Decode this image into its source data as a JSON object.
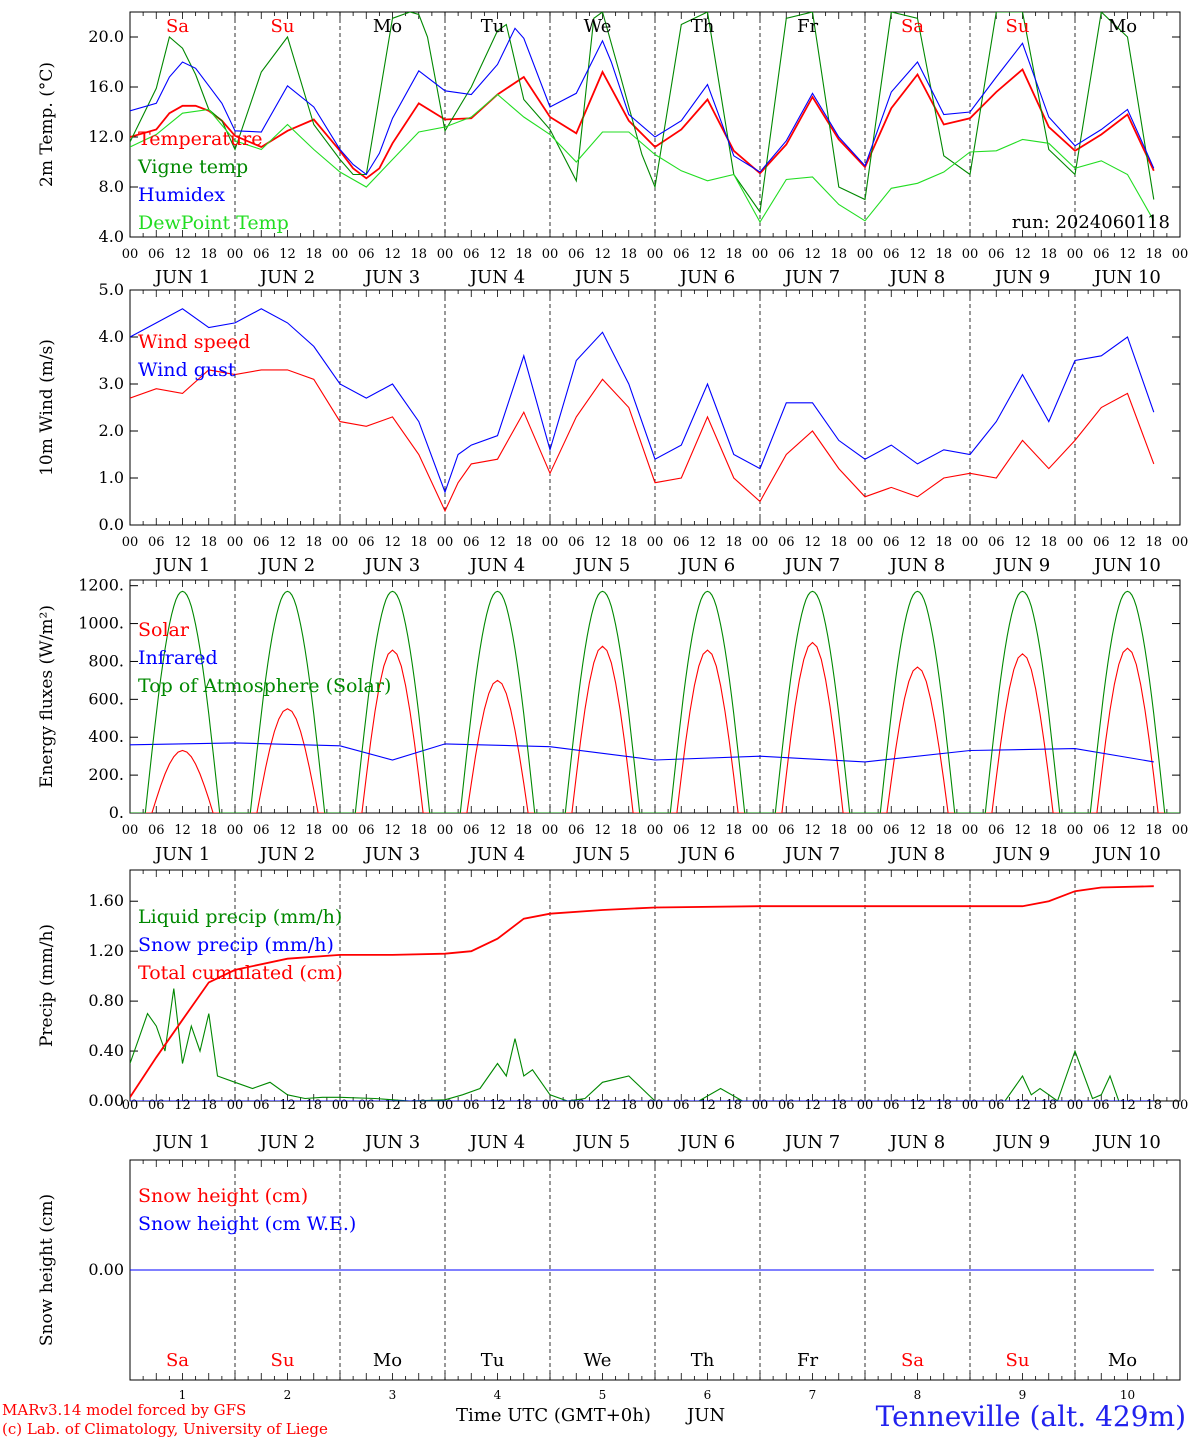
{
  "colors": {
    "temperature": "#ff0000",
    "vigne": "#008800",
    "humidex": "#0000ff",
    "dewpoint": "#22dd22",
    "wind_speed": "#ff0000",
    "wind_gust": "#0000ff",
    "solar": "#ff0000",
    "infrared": "#0000ff",
    "toa": "#008800",
    "liquid": "#008800",
    "snow_precip": "#0000ff",
    "cumulated": "#ff0000",
    "snow_height": "#ff0000",
    "snow_we": "#0000ff",
    "weekend": "#ff0000",
    "weekday": "#000000",
    "station": "#2222ee"
  },
  "time_axis": {
    "hour_labels": [
      "00",
      "06",
      "12",
      "18"
    ],
    "final_hour_label": "00",
    "date_labels": [
      "JUN  1",
      "JUN  2",
      "JUN  3",
      "JUN  4",
      "JUN  5",
      "JUN  6",
      "JUN  7",
      "JUN  8",
      "JUN  9",
      "JUN 10"
    ],
    "day_names": [
      "Sa",
      "Su",
      "Mo",
      "Tu",
      "We",
      "Th",
      "Fr",
      "Sa",
      "Su",
      "Mo"
    ],
    "weekend": [
      true,
      true,
      false,
      false,
      false,
      false,
      false,
      true,
      true,
      false
    ],
    "day_numbers": [
      "1",
      "2",
      "3",
      "4",
      "5",
      "6",
      "7",
      "8",
      "9",
      "10"
    ],
    "xlabel": "Time UTC (GMT+0h)",
    "month": "JUN"
  },
  "run_label": "run: 2024060118",
  "footer": {
    "model": "MARv3.14 model forced by GFS",
    "lab": "(c) Lab. of Climatology, University of Liege",
    "station": "Tenneville (alt. 429m)"
  },
  "chart_data": [
    {
      "type": "line",
      "ylabel": "2m Temp. (°C)",
      "ylim": [
        4.0,
        22.0
      ],
      "yticks": [
        "4.0",
        "8.0",
        "12.0",
        "16.0",
        "20.0"
      ],
      "ytick_values": [
        4,
        8,
        12,
        16,
        20
      ],
      "x_unit": "hours since JUN 1 00 UTC",
      "series": [
        {
          "name": "Temperature",
          "color_key": "temperature",
          "x": [
            0,
            6,
            9,
            12,
            15,
            18,
            21,
            24,
            30,
            36,
            42,
            48,
            51,
            54,
            57,
            60,
            66,
            72,
            78,
            84,
            90,
            96,
            102,
            108,
            114,
            120,
            126,
            132,
            138,
            144,
            150,
            156,
            162,
            168,
            174,
            180,
            186,
            192,
            198,
            204,
            210,
            216,
            222,
            228,
            234
          ],
          "values": [
            12.0,
            12.6,
            13.9,
            14.5,
            14.5,
            14.1,
            13.3,
            12.1,
            11.2,
            12.5,
            13.4,
            10.9,
            9.5,
            8.7,
            9.5,
            11.5,
            14.7,
            13.4,
            13.5,
            15.4,
            16.8,
            13.6,
            12.3,
            17.2,
            13.3,
            11.2,
            12.6,
            15.0,
            10.9,
            9.1,
            11.4,
            15.2,
            11.8,
            9.6,
            14.3,
            17.0,
            13.0,
            13.5,
            15.6,
            17.4,
            12.8,
            10.9,
            12.2,
            13.8,
            9.3
          ]
        },
        {
          "name": "Vigne temp",
          "color_key": "vigne",
          "x": [
            0,
            6,
            9,
            12,
            15,
            18,
            21,
            24,
            30,
            36,
            42,
            48,
            51,
            54,
            60,
            64,
            66,
            68,
            72,
            78,
            84,
            86,
            90,
            96,
            102,
            106,
            108,
            112,
            117,
            120,
            126,
            132,
            138,
            144,
            150,
            156,
            162,
            168,
            174,
            180,
            186,
            192,
            198,
            204,
            210,
            216,
            222,
            228,
            234
          ],
          "values": [
            11.6,
            15.9,
            20.0,
            19.1,
            17.0,
            14.2,
            13.3,
            11.0,
            17.2,
            20.0,
            13.0,
            10.2,
            9.0,
            9.0,
            21.5,
            22.0,
            21.8,
            20.0,
            12.5,
            16.0,
            20.5,
            21.0,
            15.0,
            12.6,
            8.5,
            21.5,
            22.0,
            17.0,
            10.6,
            8.0,
            21.0,
            22.0,
            9.0,
            6.0,
            21.5,
            22.0,
            8.0,
            7.0,
            22.0,
            21.5,
            10.5,
            9.0,
            22.0,
            22.0,
            11.0,
            9.0,
            22.0,
            20.0,
            7.0
          ]
        },
        {
          "name": "Humidex",
          "color_key": "humidex",
          "x": [
            0,
            6,
            9,
            12,
            15,
            18,
            21,
            24,
            30,
            36,
            42,
            48,
            51,
            54,
            57,
            60,
            66,
            72,
            78,
            84,
            88,
            90,
            96,
            102,
            108,
            110,
            114,
            120,
            126,
            132,
            138,
            144,
            150,
            156,
            162,
            168,
            174,
            180,
            186,
            192,
            198,
            204,
            210,
            216,
            222,
            228,
            234
          ],
          "values": [
            14.1,
            14.7,
            16.8,
            18.0,
            17.5,
            16.1,
            14.7,
            12.5,
            12.4,
            16.1,
            14.4,
            11.0,
            9.8,
            9.0,
            10.7,
            13.5,
            17.3,
            15.7,
            15.4,
            17.8,
            20.7,
            19.9,
            14.4,
            15.5,
            19.7,
            18.0,
            13.8,
            12.0,
            13.3,
            16.2,
            10.5,
            9.2,
            11.7,
            15.5,
            12.0,
            9.7,
            15.6,
            18.0,
            13.8,
            14.0,
            16.8,
            19.5,
            13.6,
            11.3,
            12.6,
            14.2,
            9.5
          ]
        },
        {
          "name": "DewPoint Temp",
          "color_key": "dewpoint",
          "x": [
            0,
            6,
            12,
            18,
            24,
            30,
            36,
            42,
            48,
            54,
            60,
            66,
            72,
            78,
            84,
            90,
            96,
            102,
            108,
            114,
            120,
            126,
            132,
            138,
            144,
            150,
            156,
            162,
            168,
            174,
            180,
            186,
            192,
            198,
            204,
            210,
            216,
            222,
            228,
            234
          ],
          "values": [
            11.2,
            12.2,
            13.9,
            14.2,
            11.7,
            11.0,
            13.0,
            11.0,
            9.2,
            8.0,
            10.2,
            12.4,
            12.8,
            13.6,
            15.4,
            13.6,
            12.2,
            10.0,
            12.4,
            12.4,
            10.6,
            9.3,
            8.5,
            9.0,
            5.2,
            8.6,
            8.8,
            6.6,
            5.3,
            7.9,
            8.3,
            9.2,
            10.8,
            10.9,
            11.8,
            11.5,
            9.5,
            10.1,
            9.0,
            5.3
          ]
        }
      ],
      "annotation": "run: 2024060118",
      "legend": "top-left"
    },
    {
      "type": "line",
      "ylabel": "10m Wind (m/s)",
      "ylim": [
        0.0,
        5.0
      ],
      "yticks": [
        "0.0",
        "1.0",
        "2.0",
        "3.0",
        "4.0",
        "5.0"
      ],
      "ytick_values": [
        0,
        1,
        2,
        3,
        4,
        5
      ],
      "x_unit": "hours since JUN 1 00 UTC",
      "series": [
        {
          "name": "Wind speed",
          "color_key": "wind_speed",
          "x": [
            0,
            6,
            12,
            18,
            24,
            30,
            36,
            42,
            48,
            54,
            60,
            66,
            72,
            75,
            78,
            84,
            90,
            96,
            102,
            108,
            114,
            120,
            126,
            132,
            138,
            144,
            150,
            156,
            162,
            168,
            174,
            180,
            186,
            192,
            198,
            204,
            210,
            216,
            222,
            228,
            234
          ],
          "values": [
            2.7,
            2.9,
            2.8,
            3.3,
            3.2,
            3.3,
            3.3,
            3.1,
            2.2,
            2.1,
            2.3,
            1.5,
            0.3,
            0.9,
            1.3,
            1.4,
            2.4,
            1.1,
            2.3,
            3.1,
            2.5,
            0.9,
            1.0,
            2.3,
            1.0,
            0.5,
            1.5,
            2.0,
            1.2,
            0.6,
            0.8,
            0.6,
            1.0,
            1.1,
            1.0,
            1.8,
            1.2,
            1.8,
            2.5,
            2.8,
            1.3
          ]
        },
        {
          "name": "Wind gust",
          "color_key": "wind_gust",
          "x": [
            0,
            6,
            12,
            18,
            24,
            30,
            36,
            42,
            48,
            54,
            60,
            66,
            72,
            75,
            78,
            84,
            90,
            96,
            102,
            108,
            114,
            120,
            126,
            132,
            138,
            144,
            150,
            156,
            162,
            168,
            174,
            180,
            186,
            192,
            198,
            204,
            210,
            216,
            222,
            228,
            234
          ],
          "values": [
            4.0,
            4.3,
            4.6,
            4.2,
            4.3,
            4.6,
            4.3,
            3.8,
            3.0,
            2.7,
            3.0,
            2.2,
            0.7,
            1.5,
            1.7,
            1.9,
            3.6,
            1.6,
            3.5,
            4.1,
            3.0,
            1.4,
            1.7,
            3.0,
            1.5,
            1.2,
            2.6,
            2.6,
            1.8,
            1.4,
            1.7,
            1.3,
            1.6,
            1.5,
            2.2,
            3.2,
            2.2,
            3.5,
            3.6,
            4.0,
            2.4
          ]
        }
      ],
      "legend": "top-left"
    },
    {
      "type": "line",
      "ylabel": "Energy fluxes (W/m²)",
      "ylim": [
        0,
        1230
      ],
      "yticks": [
        "0.",
        "200.",
        "400.",
        "600.",
        "800.",
        "1000.",
        "1200."
      ],
      "ytick_values": [
        0,
        200,
        400,
        600,
        800,
        1000,
        1200
      ],
      "x_unit": "hours since JUN 1 00 UTC",
      "series": [
        {
          "name": "Solar",
          "color_key": "solar",
          "daily_peaks": [
            330,
            550,
            860,
            700,
            880,
            860,
            900,
            770,
            840,
            870
          ]
        },
        {
          "name": "Infrared",
          "color_key": "infrared",
          "x": [
            0,
            24,
            48,
            60,
            72,
            96,
            120,
            144,
            168,
            192,
            216,
            234
          ],
          "values": [
            360,
            370,
            355,
            280,
            365,
            350,
            280,
            300,
            270,
            330,
            340,
            270
          ]
        },
        {
          "name": "Top of Atmosphere (Solar)",
          "color_key": "toa",
          "daily_peak": 1170,
          "sunrise_hour": 3.5,
          "sunset_hour": 20.5
        }
      ],
      "legend": "top-left"
    },
    {
      "type": "line",
      "ylabel": "Precip (mm/h)",
      "ylim": [
        0.0,
        1.85
      ],
      "yticks": [
        "0.00",
        "0.40",
        "0.80",
        "1.20",
        "1.60"
      ],
      "ytick_values": [
        0,
        0.4,
        0.8,
        1.2,
        1.6
      ],
      "x_unit": "hours since JUN 1 00 UTC",
      "series": [
        {
          "name": "Liquid precip (mm/h)",
          "color_key": "liquid",
          "x": [
            0,
            2,
            4,
            6,
            8,
            10,
            12,
            14,
            16,
            18,
            20,
            24,
            28,
            32,
            36,
            40,
            44,
            48,
            56,
            64,
            72,
            76,
            80,
            84,
            86,
            88,
            90,
            92,
            96,
            100,
            104,
            108,
            114,
            120,
            130,
            135,
            140,
            144,
            150,
            156,
            160,
            170,
            180,
            200,
            204,
            206,
            208,
            212,
            216,
            220,
            222,
            224,
            226,
            228,
            234
          ],
          "values": [
            0.3,
            0.5,
            0.7,
            0.6,
            0.4,
            0.9,
            0.3,
            0.6,
            0.4,
            0.7,
            0.2,
            0.15,
            0.1,
            0.15,
            0.05,
            0.02,
            0.03,
            0.03,
            0.02,
            0.0,
            0.01,
            0.05,
            0.1,
            0.3,
            0.2,
            0.5,
            0.2,
            0.25,
            0.05,
            0.0,
            0.02,
            0.15,
            0.2,
            0.0,
            0.0,
            0.1,
            0.0,
            0.0,
            0.0,
            0.0,
            0.0,
            0.0,
            0.0,
            0.0,
            0.2,
            0.05,
            0.1,
            0.0,
            0.4,
            0.02,
            0.05,
            0.2,
            0.0,
            0.0,
            0.0
          ]
        },
        {
          "name": "Snow precip (mm/h)",
          "color_key": "snow_precip",
          "x": [
            0,
            234
          ],
          "values": [
            0.0,
            0.0
          ]
        },
        {
          "name": "Total cumulated (cm)",
          "color_key": "cumulated",
          "x": [
            0,
            6,
            12,
            18,
            24,
            36,
            48,
            60,
            72,
            78,
            84,
            90,
            96,
            108,
            120,
            144,
            168,
            192,
            204,
            210,
            216,
            222,
            234
          ],
          "values": [
            0.03,
            0.35,
            0.65,
            0.95,
            1.05,
            1.14,
            1.17,
            1.17,
            1.18,
            1.2,
            1.3,
            1.46,
            1.5,
            1.53,
            1.55,
            1.56,
            1.56,
            1.56,
            1.56,
            1.6,
            1.68,
            1.71,
            1.72
          ]
        }
      ],
      "legend": "top-left"
    },
    {
      "type": "line",
      "ylabel": "Snow height (cm)",
      "ylim": [
        -1,
        1
      ],
      "yticks": [
        "0.00"
      ],
      "ytick_values": [
        0
      ],
      "x_unit": "hours since JUN 1 00 UTC",
      "series": [
        {
          "name": "Snow height (cm)",
          "color_key": "snow_height",
          "x": [
            0,
            234
          ],
          "values": [
            0,
            0
          ]
        },
        {
          "name": "Snow height (cm W.E.)",
          "color_key": "snow_we",
          "x": [
            0,
            234
          ],
          "values": [
            0,
            0
          ]
        }
      ],
      "legend": "top-left"
    }
  ]
}
